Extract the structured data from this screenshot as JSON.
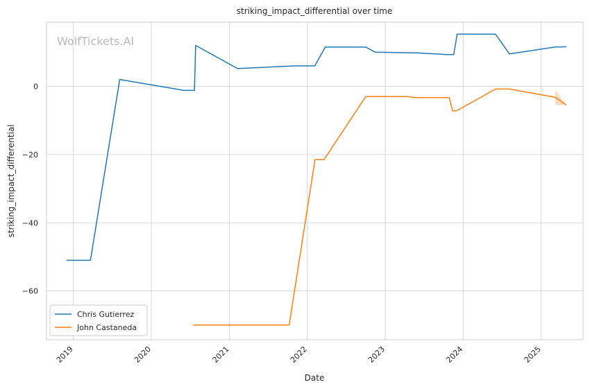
{
  "chart_data": {
    "type": "line",
    "title": "striking_impact_differential over time",
    "xlabel": "Date",
    "ylabel": "striking_impact_differential",
    "watermark": "WolfTickets.AI",
    "x_ticks": [
      "2019",
      "2020",
      "2021",
      "2022",
      "2023",
      "2024",
      "2025"
    ],
    "y_ticks": [
      0,
      -20,
      -40,
      -60
    ],
    "xlim": [
      "2018-08-28",
      "2025-07-16"
    ],
    "ylim": [
      -74.3,
      18.8
    ],
    "grid": true,
    "legend_position": "lower-left",
    "series": [
      {
        "name": "Chris Gutierrez",
        "color": "#1f77b4",
        "points": [
          [
            "2018-11-29",
            -51
          ],
          [
            "2019-03-22",
            -51
          ],
          [
            "2019-08-06",
            2
          ],
          [
            "2020-06-03",
            -1.2
          ],
          [
            "2020-07-21",
            -1.2
          ],
          [
            "2020-07-27",
            12
          ],
          [
            "2021-02-08",
            5.2
          ],
          [
            "2021-11-01",
            6
          ],
          [
            "2022-02-05",
            6
          ],
          [
            "2022-03-26",
            11.5
          ],
          [
            "2022-10-02",
            11.5
          ],
          [
            "2022-11-15",
            10
          ],
          [
            "2023-05-29",
            9.8
          ],
          [
            "2023-10-14",
            9.3
          ],
          [
            "2023-11-18",
            9.3
          ],
          [
            "2023-12-04",
            15.3
          ],
          [
            "2024-06-01",
            15.3
          ],
          [
            "2024-08-05",
            9.5
          ],
          [
            "2025-03-06",
            11.5
          ],
          [
            "2025-04-29",
            11.6
          ]
        ]
      },
      {
        "name": "John Castaneda",
        "color": "#ff7f0e",
        "points": [
          [
            "2020-07-15",
            -70
          ],
          [
            "2021-10-08",
            -70
          ],
          [
            "2022-02-06",
            -21.5
          ],
          [
            "2022-03-20",
            -21.5
          ],
          [
            "2022-10-02",
            -3
          ],
          [
            "2023-04-15",
            -3
          ],
          [
            "2023-05-19",
            -3.3
          ],
          [
            "2023-10-28",
            -3.3
          ],
          [
            "2023-11-13",
            -7.2
          ],
          [
            "2023-12-01",
            -7.2
          ],
          [
            "2024-06-01",
            -0.8
          ],
          [
            "2024-08-05",
            -0.8
          ],
          [
            "2025-03-07",
            -3.2
          ],
          [
            "2025-04-29",
            -5.5
          ]
        ]
      }
    ],
    "band": {
      "series": "John Castaneda",
      "points": [
        [
          "2025-03-07",
          -1,
          -5.5
        ],
        [
          "2025-04-29",
          -5.5,
          -5.5
        ]
      ]
    }
  }
}
